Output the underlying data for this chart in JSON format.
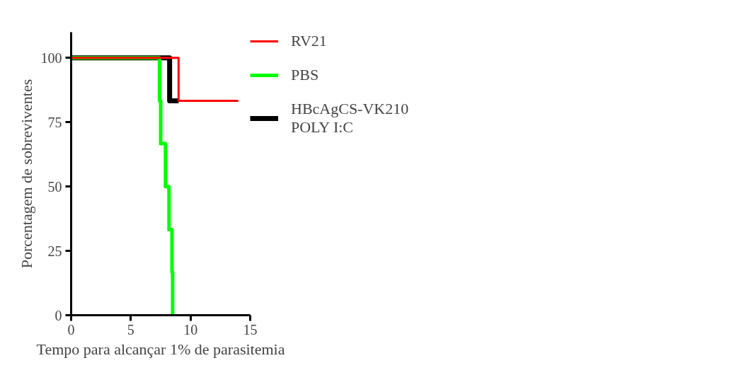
{
  "chart_data": {
    "type": "step",
    "xlabel": "Tempo para alcançar 1% de parasitemia",
    "ylabel": "Porcentagem de sobreviventes",
    "xlim": [
      0,
      15
    ],
    "xticks": [
      0,
      5,
      10,
      15
    ],
    "ylim": [
      0,
      110
    ],
    "yticks": [
      0,
      25,
      50,
      75,
      100
    ],
    "grid": false,
    "legend": "right",
    "marker": "none",
    "line_style": "solid",
    "series": [
      {
        "name": "RV21",
        "color": "#ff0000",
        "x": [
          0,
          9,
          14
        ],
        "values": [
          100,
          83.3,
          83.3
        ]
      },
      {
        "name": "PBS",
        "color": "#00ff00",
        "x": [
          0,
          7.4,
          7.5,
          7.9,
          8.2,
          8.45,
          8.5
        ],
        "values": [
          100,
          83.3,
          66.7,
          50,
          33.3,
          16.7,
          0
        ]
      },
      {
        "name": "HBcAgCS-VK210\nPOLY I:C",
        "color": "#000000",
        "x": [
          0,
          8.25,
          9
        ],
        "values": [
          100,
          83.3,
          83.3
        ]
      }
    ]
  }
}
